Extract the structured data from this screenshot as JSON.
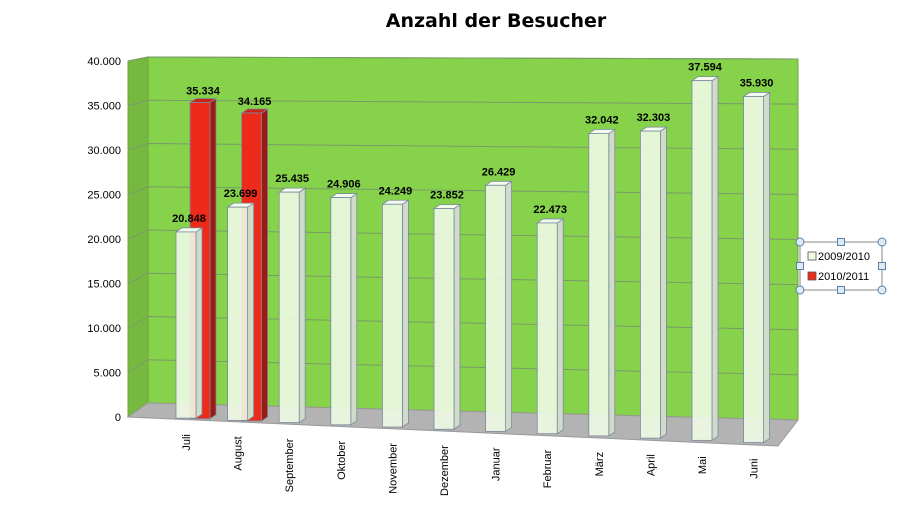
{
  "chart_data": {
    "type": "bar",
    "title": "Anzahl der Besucher",
    "xlabel": "",
    "ylabel": "",
    "ylim": [
      0,
      40000
    ],
    "yticks": [
      "0",
      "5.000",
      "10.000",
      "15.000",
      "20.000",
      "25.000",
      "30.000",
      "35.000",
      "40.000"
    ],
    "categories": [
      "Juli",
      "August",
      "September",
      "Oktober",
      "November",
      "Dezember",
      "Januar",
      "Februar",
      "März",
      "April",
      "Mai",
      "Juni"
    ],
    "series": [
      {
        "name": "2009/2010",
        "color": "#eef9e4",
        "values": [
          20848,
          23699,
          25435,
          24906,
          24249,
          23852,
          26429,
          22473,
          32042,
          32303,
          37594,
          35930
        ],
        "labels": [
          "20.848",
          "23.699",
          "25.435",
          "24.906",
          "24.249",
          "23.852",
          "26.429",
          "22.473",
          "32.042",
          "32.303",
          "37.594",
          "35.930"
        ]
      },
      {
        "name": "2010/2011",
        "color": "#ee2a1a",
        "values": [
          35334,
          34165,
          null,
          null,
          null,
          null,
          null,
          null,
          null,
          null,
          null,
          null
        ],
        "labels": [
          "35.334",
          "34.165",
          "",
          "",
          "",
          "",
          "",
          "",
          "",
          "",
          "",
          ""
        ]
      }
    ],
    "grid": true,
    "legend": "right",
    "wall_color": "#86d24a",
    "floor_color": "#b3b3b3",
    "legend_markers": [
      "□",
      "■"
    ]
  }
}
